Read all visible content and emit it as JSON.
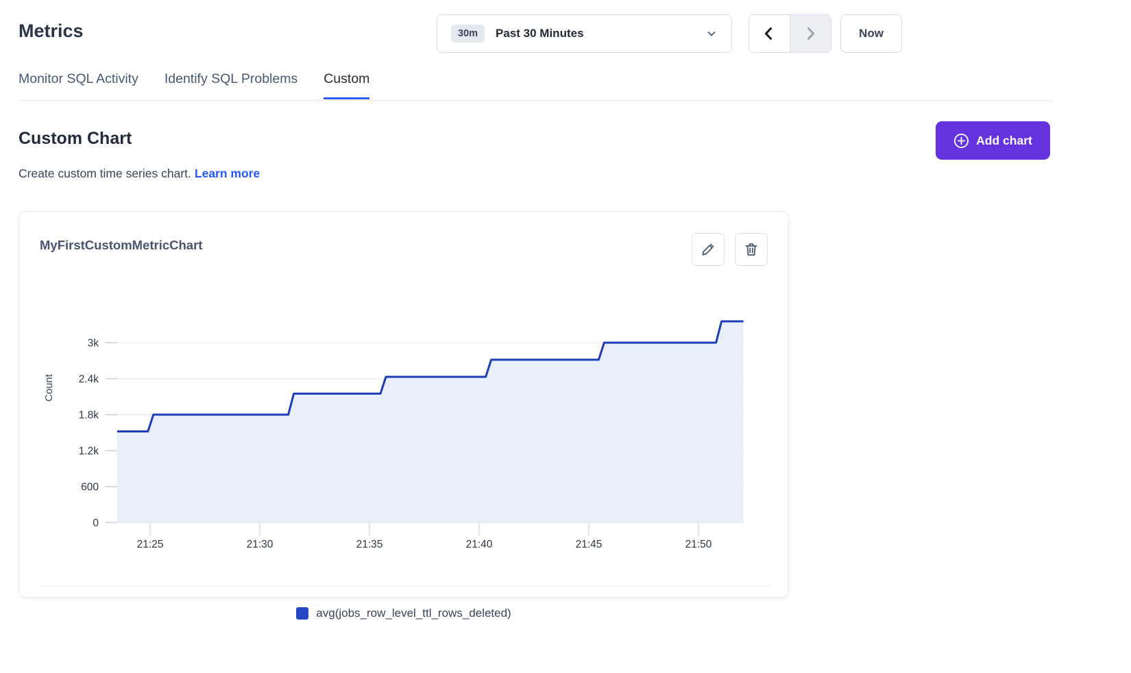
{
  "page": {
    "title": "Metrics"
  },
  "time_controls": {
    "range_badge": "30m",
    "range_label": "Past 30 Minutes",
    "now_label": "Now",
    "prev_enabled": true,
    "next_enabled": false
  },
  "tabs": [
    {
      "label": "Monitor SQL Activity",
      "active": false
    },
    {
      "label": "Identify SQL Problems",
      "active": false
    },
    {
      "label": "Custom",
      "active": true
    }
  ],
  "section": {
    "title": "Custom Chart",
    "description": "Create custom time series chart.",
    "link_label": "Learn more",
    "add_chart_label": "Add chart",
    "accent_color": "#6433de",
    "tab_underline_color": "#2e5cf0",
    "link_color": "#2458f8"
  },
  "card": {
    "title": "MyFirstCustomMetricChart"
  },
  "legend": {
    "label": "avg(jobs_row_level_ttl_rows_deleted)",
    "color": "#2447c4"
  },
  "chart_data": {
    "type": "area",
    "subtype": "step-line with fill",
    "title": "MyFirstCustomMetricChart",
    "xlabel": "",
    "ylabel": "Count",
    "x_unit": "time of day (t = minutes after 21:00)",
    "xlim": [
      23.4,
      52.1
    ],
    "ylim": [
      0,
      3730
    ],
    "grid": "horizontal only",
    "legend_position": "bottom center",
    "x_ticks": [
      {
        "t": 25,
        "label": "21:25"
      },
      {
        "t": 30,
        "label": "21:30"
      },
      {
        "t": 35,
        "label": "21:35"
      },
      {
        "t": 40,
        "label": "21:40"
      },
      {
        "t": 45,
        "label": "21:45"
      },
      {
        "t": 50,
        "label": "21:50"
      }
    ],
    "y_ticks": [
      {
        "v": 0,
        "label": "0"
      },
      {
        "v": 600,
        "label": "600"
      },
      {
        "v": 1200,
        "label": "1.2k"
      },
      {
        "v": 1800,
        "label": "1.8k"
      },
      {
        "v": 2400,
        "label": "2.4k"
      },
      {
        "v": 3000,
        "label": "3k"
      }
    ],
    "series": [
      {
        "name": "avg(jobs_row_level_ttl_rows_deleted)",
        "color": "#1d3db6",
        "fill": "#e9eefb",
        "points": [
          [
            23.5,
            1520
          ],
          [
            24.9,
            1520
          ],
          [
            25.15,
            1800
          ],
          [
            31.3,
            1800
          ],
          [
            31.55,
            2150
          ],
          [
            35.5,
            2150
          ],
          [
            35.75,
            2430
          ],
          [
            40.3,
            2430
          ],
          [
            40.55,
            2715
          ],
          [
            45.45,
            2715
          ],
          [
            45.7,
            3000
          ],
          [
            50.8,
            3000
          ],
          [
            51.05,
            3355
          ],
          [
            52.05,
            3355
          ]
        ]
      }
    ],
    "colors": {
      "gridline": "#e8eaee",
      "axis_tick": "#d7dae1",
      "x_tick": "#e2e5ea",
      "axis_text": "#2f3747"
    }
  }
}
